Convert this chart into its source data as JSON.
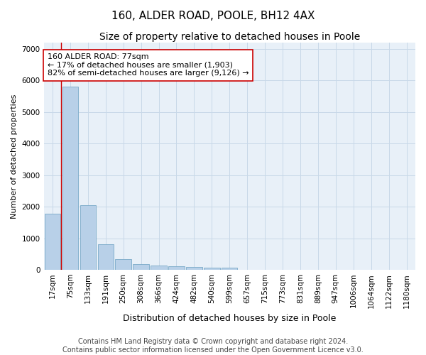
{
  "title": "160, ALDER ROAD, POOLE, BH12 4AX",
  "subtitle": "Size of property relative to detached houses in Poole",
  "xlabel": "Distribution of detached houses by size in Poole",
  "ylabel": "Number of detached properties",
  "categories": [
    "17sqm",
    "75sqm",
    "133sqm",
    "191sqm",
    "250sqm",
    "308sqm",
    "366sqm",
    "424sqm",
    "482sqm",
    "540sqm",
    "599sqm",
    "657sqm",
    "715sqm",
    "773sqm",
    "831sqm",
    "889sqm",
    "947sqm",
    "1006sqm",
    "1064sqm",
    "1122sqm",
    "1180sqm"
  ],
  "values": [
    1780,
    5800,
    2060,
    820,
    340,
    190,
    130,
    110,
    95,
    80,
    70,
    0,
    0,
    0,
    0,
    0,
    0,
    0,
    0,
    0,
    0
  ],
  "bar_color": "#b8d0e8",
  "bar_edge_color": "#7aaac8",
  "highlight_line_color": "#cc0000",
  "annotation_text": "160 ALDER ROAD: 77sqm\n← 17% of detached houses are smaller (1,903)\n82% of semi-detached houses are larger (9,126) →",
  "annotation_box_facecolor": "#ffffff",
  "annotation_box_edgecolor": "#cc0000",
  "ylim": [
    0,
    7200
  ],
  "yticks": [
    0,
    1000,
    2000,
    3000,
    4000,
    5000,
    6000,
    7000
  ],
  "grid_color": "#c8d8e8",
  "background_color": "#e8f0f8",
  "footer_line1": "Contains HM Land Registry data © Crown copyright and database right 2024.",
  "footer_line2": "Contains public sector information licensed under the Open Government Licence v3.0.",
  "title_fontsize": 11,
  "subtitle_fontsize": 10,
  "xlabel_fontsize": 9,
  "ylabel_fontsize": 8,
  "tick_fontsize": 7.5,
  "annotation_fontsize": 8,
  "footer_fontsize": 7
}
